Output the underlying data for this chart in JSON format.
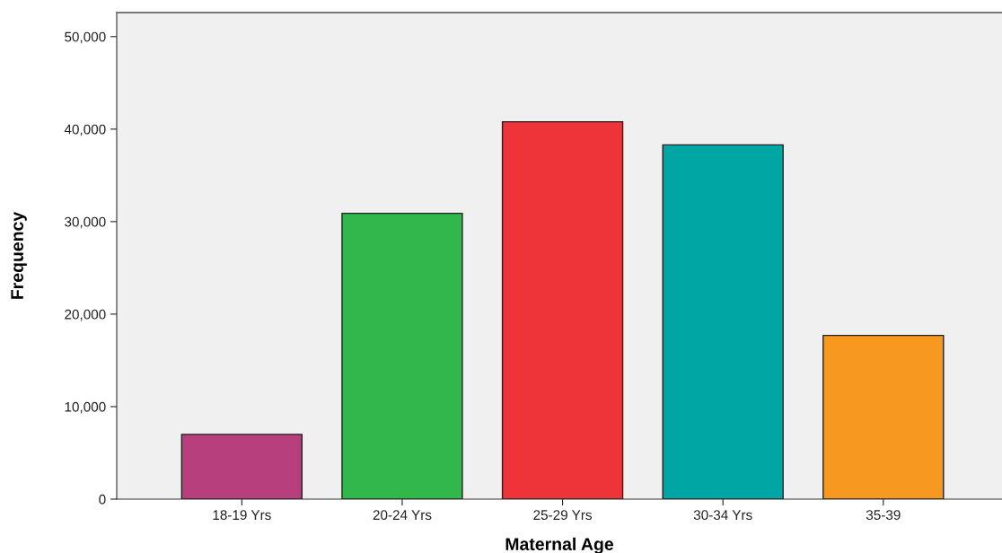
{
  "chart_data": {
    "type": "bar",
    "xlabel": "Maternal Age",
    "ylabel": "Frequency",
    "categories": [
      "18-19 Yrs",
      "20-24 Yrs",
      "25-29 Yrs",
      "30-34 Yrs",
      "35-39"
    ],
    "values": [
      7000,
      30900,
      40800,
      38300,
      17700
    ],
    "colors": [
      "#b83f7e",
      "#31b84a",
      "#ee3339",
      "#00a6a4",
      "#f7991f"
    ],
    "ylim": [
      0,
      52600
    ],
    "yticks": [
      {
        "value": 0,
        "label": "0"
      },
      {
        "value": 10000,
        "label": "10,000"
      },
      {
        "value": 20000,
        "label": "20,000"
      },
      {
        "value": 30000,
        "label": "30,000"
      },
      {
        "value": 40000,
        "label": "40,000"
      },
      {
        "value": 50000,
        "label": "50,000"
      }
    ],
    "grid": false,
    "legend": false
  }
}
